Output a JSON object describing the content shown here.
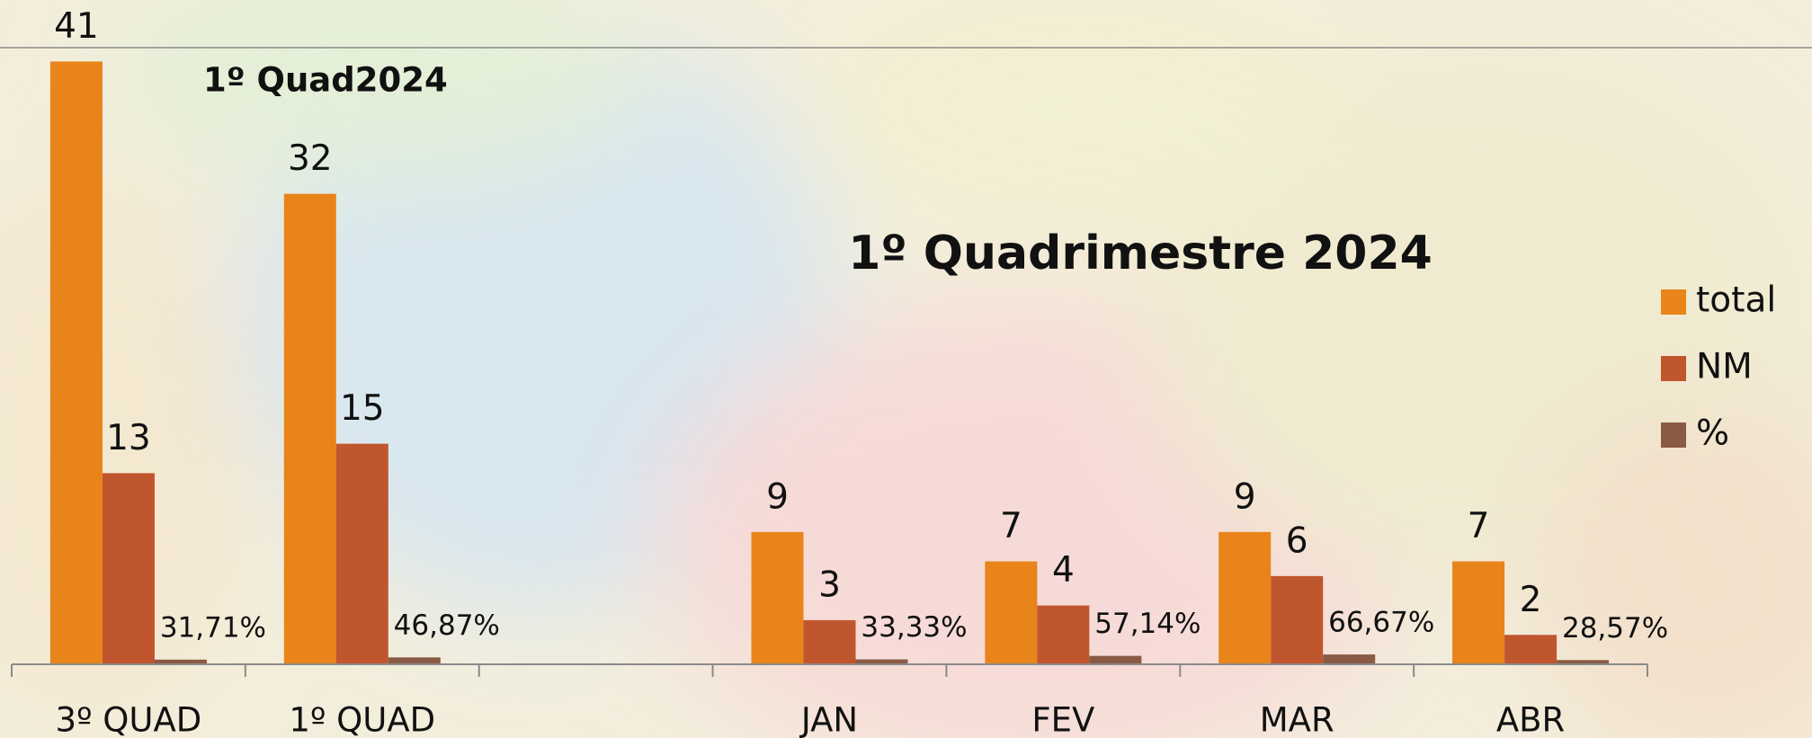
{
  "chart_data": {
    "type": "bar",
    "title": "1º Quadrimestre 2024",
    "subtitle": "1º Quad2024",
    "categories": [
      "3º QUAD",
      "1º QUAD",
      null,
      "JAN",
      "FEV",
      "MAR",
      "ABR"
    ],
    "series": [
      {
        "name": "total",
        "color": "#e8841a",
        "values": [
          41,
          32,
          null,
          9,
          7,
          9,
          7
        ]
      },
      {
        "name": "NM",
        "color": "#c0562e",
        "values": [
          13,
          15,
          null,
          3,
          4,
          6,
          2
        ]
      },
      {
        "name": "%",
        "color": "#8b5a44",
        "values": [
          0.3171,
          0.4687,
          null,
          0.3333,
          0.5714,
          0.6667,
          0.2857
        ],
        "value_labels": [
          "31,71%",
          "46,87%",
          null,
          "33,33%",
          "57,14%",
          "66,67%",
          "28,57%"
        ]
      }
    ],
    "ylim": [
      0,
      45
    ],
    "legend": "right"
  }
}
